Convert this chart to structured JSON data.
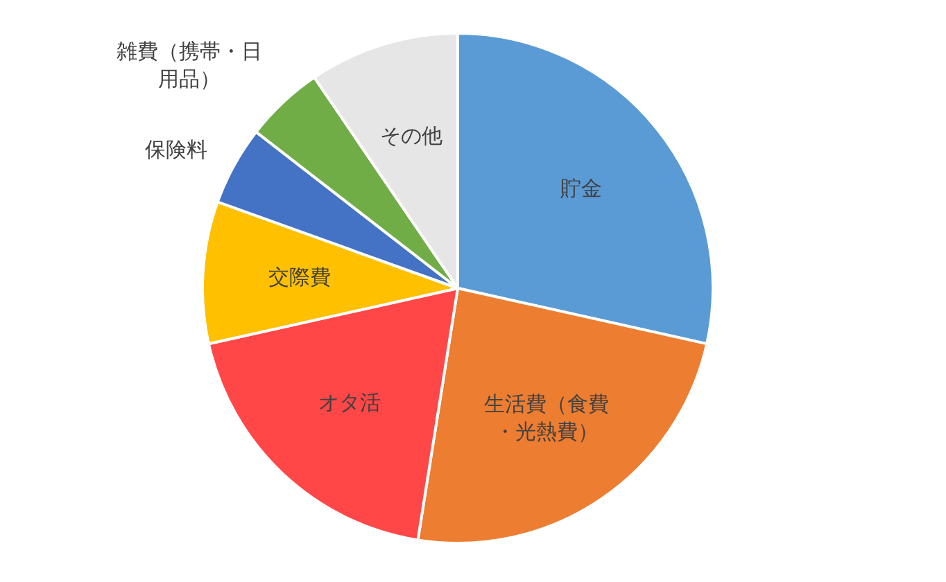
{
  "chart_data": {
    "type": "pie",
    "categories": [
      "貯金",
      "生活費（食費・光熱費）",
      "オタ活",
      "交際費",
      "保険料",
      "雑費（携帯・日用品）",
      "その他"
    ],
    "values": [
      28.5,
      24,
      19,
      9,
      5,
      5,
      9.5
    ],
    "colors": [
      "#5b9bd5",
      "#ed7d31",
      "#ff4747",
      "#ffc000",
      "#4472c4",
      "#70ad47",
      "#e7e6e6"
    ]
  }
}
